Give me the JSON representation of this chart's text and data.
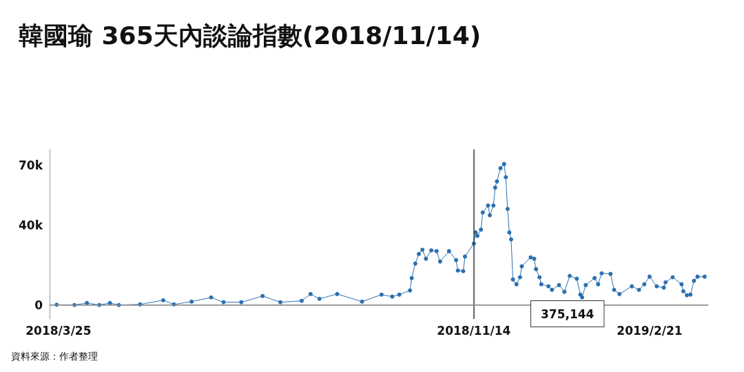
{
  "chart_data": {
    "type": "line",
    "title": "韓國瑜 365天內談論指數(2018/11/14)",
    "annotations": [
      "375,144",
      "資料來源：作者整理"
    ],
    "x": [
      "2018-03-24",
      "2018-04-03",
      "2018-04-10",
      "2018-04-17",
      "2018-04-23",
      "2018-04-28",
      "2018-05-10",
      "2018-05-23",
      "2018-05-29",
      "2018-06-08",
      "2018-06-19",
      "2018-06-26",
      "2018-07-06",
      "2018-07-18",
      "2018-07-28",
      "2018-08-09",
      "2018-08-14",
      "2018-08-19",
      "2018-08-29",
      "2018-09-12",
      "2018-09-23",
      "2018-09-29",
      "2018-10-03",
      "2018-10-09",
      "2018-10-10",
      "2018-10-12",
      "2018-10-14",
      "2018-10-16",
      "2018-10-18",
      "2018-10-21",
      "2018-10-24",
      "2018-10-26",
      "2018-10-31",
      "2018-11-04",
      "2018-11-05",
      "2018-11-08",
      "2018-11-09",
      "2018-11-14",
      "2018-11-15",
      "2018-11-16",
      "2018-11-18",
      "2018-11-19",
      "2018-11-22",
      "2018-11-23",
      "2018-11-25",
      "2018-11-26",
      "2018-11-27",
      "2018-11-29",
      "2018-12-01",
      "2018-12-02",
      "2018-12-03",
      "2018-12-04",
      "2018-12-05",
      "2018-12-06",
      "2018-12-08",
      "2018-12-10",
      "2018-12-11",
      "2018-12-16",
      "2018-12-18",
      "2018-12-19",
      "2018-12-21",
      "2018-12-22",
      "2018-12-26",
      "2018-12-28",
      "2019-01-01",
      "2019-01-04",
      "2019-01-07",
      "2019-01-11",
      "2019-01-13",
      "2019-01-14",
      "2019-01-16",
      "2019-01-21",
      "2019-01-23",
      "2019-01-25",
      "2019-01-30",
      "2019-02-01",
      "2019-02-04",
      "2019-02-11",
      "2019-02-15",
      "2019-02-18",
      "2019-02-21",
      "2019-02-25",
      "2019-03-01",
      "2019-03-02",
      "2019-03-06",
      "2019-03-11",
      "2019-03-12",
      "2019-03-14",
      "2019-03-16",
      "2019-03-18",
      "2019-03-20",
      "2019-03-24"
    ],
    "series": [
      {
        "color": "#2b70b0",
        "values": [
          100,
          0,
          1000,
          0,
          1000,
          0,
          300,
          2400,
          300,
          1700,
          3800,
          1400,
          1400,
          4500,
          1400,
          2100,
          5500,
          3100,
          5500,
          1700,
          5200,
          4200,
          5200,
          7300,
          13500,
          20800,
          25600,
          27700,
          23200,
          27400,
          27000,
          21800,
          27000,
          22500,
          17300,
          17000,
          24300,
          30800,
          36400,
          34700,
          37800,
          46400,
          49900,
          45000,
          49900,
          58900,
          62000,
          68600,
          70700,
          64100,
          48200,
          36400,
          32900,
          12800,
          10400,
          13900,
          19400,
          23900,
          23200,
          18000,
          13900,
          10400,
          9400,
          7600,
          10000,
          6600,
          14600,
          13200,
          5200,
          3800,
          10000,
          13500,
          10400,
          15900,
          15600,
          7600,
          5500,
          9400,
          7600,
          10400,
          14200,
          9400,
          8700,
          11400,
          13900,
          10400,
          6900,
          4900,
          5200,
          12100,
          14200,
          14200
        ]
      }
    ],
    "xlim": [
      "2018-03-20",
      "2019-03-26"
    ],
    "xticks": [
      {
        "value": "2018-03-25",
        "label": "2018/3/25"
      },
      {
        "value": "2018-11-14",
        "label": "2018/11/14"
      },
      {
        "value": "2019-02-21",
        "label": "2019/2/21"
      }
    ],
    "ylim": [
      -7000,
      78000
    ],
    "yticks": [
      0,
      {
        "value": 40000,
        "label": "40k"
      },
      {
        "value": 70000,
        "label": "70k"
      }
    ],
    "ref_lines": [
      {
        "axis": "x",
        "value": "2018-11-14",
        "label": null,
        "color": "#333333"
      },
      {
        "axis": "y",
        "value": 0,
        "label": null,
        "color": "#8c8c8c"
      }
    ],
    "grid": false,
    "marker": "circle",
    "line_style": "solid"
  }
}
